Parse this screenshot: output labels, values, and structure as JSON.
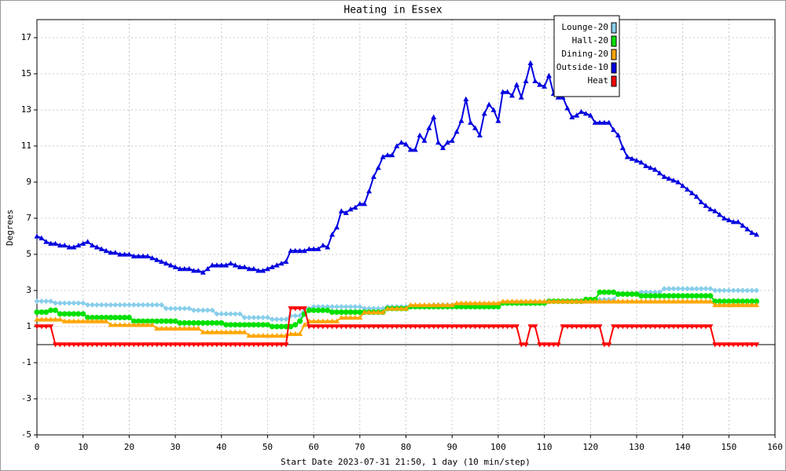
{
  "chart_data": {
    "type": "line",
    "title": "Heating in Essex",
    "ylabel": "Degrees",
    "xlabel": "Start Date 2023-07-31 21:50, 1 day (10 min/step)",
    "xlim": [
      0,
      160
    ],
    "ylim": [
      -5,
      18
    ],
    "grid": true,
    "legend": "upper right",
    "xticks": [
      0,
      10,
      20,
      30,
      40,
      50,
      60,
      70,
      80,
      90,
      100,
      110,
      120,
      130,
      140,
      150,
      160
    ],
    "yticks": [
      -5,
      -3,
      -1,
      1,
      3,
      5,
      7,
      9,
      11,
      13,
      15,
      17
    ],
    "x": [
      0,
      1,
      2,
      3,
      4,
      5,
      6,
      7,
      8,
      9,
      10,
      11,
      12,
      13,
      14,
      15,
      16,
      17,
      18,
      19,
      20,
      21,
      22,
      23,
      24,
      25,
      26,
      27,
      28,
      29,
      30,
      31,
      32,
      33,
      34,
      35,
      36,
      37,
      38,
      39,
      40,
      41,
      42,
      43,
      44,
      45,
      46,
      47,
      48,
      49,
      50,
      51,
      52,
      53,
      54,
      55,
      56,
      57,
      58,
      59,
      60,
      61,
      62,
      63,
      64,
      65,
      66,
      67,
      68,
      69,
      70,
      71,
      72,
      73,
      74,
      75,
      76,
      77,
      78,
      79,
      80,
      81,
      82,
      83,
      84,
      85,
      86,
      87,
      88,
      89,
      90,
      91,
      92,
      93,
      94,
      95,
      96,
      97,
      98,
      99,
      100,
      101,
      102,
      103,
      104,
      105,
      106,
      107,
      108,
      109,
      110,
      111,
      112,
      113,
      114,
      115,
      116,
      117,
      118,
      119,
      120,
      121,
      122,
      123,
      124,
      125,
      126,
      127,
      128,
      129,
      130,
      131,
      132,
      133,
      134,
      135,
      136,
      137,
      138,
      139,
      140,
      141,
      142,
      143,
      144,
      145,
      146,
      147,
      148,
      149,
      150,
      151,
      152,
      153,
      154,
      155,
      156
    ],
    "series": [
      {
        "name": "Lounge-20",
        "color": "#87ceeb",
        "marker": "diamond",
        "values": [
          2.4,
          2.4,
          2.4,
          2.4,
          2.3,
          2.3,
          2.3,
          2.3,
          2.3,
          2.3,
          2.3,
          2.2,
          2.2,
          2.2,
          2.2,
          2.2,
          2.2,
          2.2,
          2.2,
          2.2,
          2.2,
          2.2,
          2.2,
          2.2,
          2.2,
          2.2,
          2.2,
          2.2,
          2.0,
          2.0,
          2.0,
          2.0,
          2.0,
          2.0,
          1.9,
          1.9,
          1.9,
          1.9,
          1.9,
          1.7,
          1.7,
          1.7,
          1.7,
          1.7,
          1.7,
          1.5,
          1.5,
          1.5,
          1.5,
          1.5,
          1.5,
          1.4,
          1.4,
          1.4,
          1.4,
          1.6,
          1.6,
          1.6,
          2.0,
          2.0,
          2.1,
          2.1,
          2.1,
          2.1,
          2.1,
          2.1,
          2.1,
          2.1,
          2.1,
          2.1,
          2.1,
          2.0,
          2.0,
          2.0,
          2.0,
          2.0,
          2.1,
          2.1,
          2.1,
          2.1,
          2.1,
          2.1,
          2.1,
          2.1,
          2.1,
          2.1,
          2.2,
          2.2,
          2.2,
          2.2,
          2.2,
          2.2,
          2.2,
          2.2,
          2.2,
          2.2,
          2.2,
          2.2,
          2.2,
          2.2,
          2.2,
          2.3,
          2.3,
          2.3,
          2.3,
          2.3,
          2.3,
          2.3,
          2.3,
          2.3,
          2.3,
          2.4,
          2.4,
          2.4,
          2.4,
          2.4,
          2.4,
          2.4,
          2.4,
          2.4,
          2.4,
          2.5,
          2.5,
          2.5,
          2.5,
          2.5,
          2.8,
          2.8,
          2.8,
          2.8,
          2.8,
          2.9,
          2.9,
          2.9,
          2.9,
          2.9,
          3.1,
          3.1,
          3.1,
          3.1,
          3.1,
          3.1,
          3.1,
          3.1,
          3.1,
          3.1,
          3.1,
          3.0,
          3.0,
          3.0,
          3.0,
          3.0,
          3.0,
          3.0,
          3.0,
          3.0,
          3.0
        ]
      },
      {
        "name": "Hall-20",
        "color": "#00e000",
        "marker": "circle",
        "values": [
          1.8,
          1.8,
          1.8,
          1.9,
          1.9,
          1.7,
          1.7,
          1.7,
          1.7,
          1.7,
          1.7,
          1.5,
          1.5,
          1.5,
          1.5,
          1.5,
          1.5,
          1.5,
          1.5,
          1.5,
          1.5,
          1.3,
          1.3,
          1.3,
          1.3,
          1.3,
          1.3,
          1.3,
          1.3,
          1.3,
          1.3,
          1.2,
          1.2,
          1.2,
          1.2,
          1.2,
          1.2,
          1.2,
          1.2,
          1.2,
          1.2,
          1.1,
          1.1,
          1.1,
          1.1,
          1.1,
          1.1,
          1.1,
          1.1,
          1.1,
          1.1,
          1.0,
          1.0,
          1.0,
          1.0,
          1.0,
          1.1,
          1.3,
          1.7,
          1.9,
          1.9,
          1.9,
          1.9,
          1.9,
          1.8,
          1.8,
          1.8,
          1.8,
          1.8,
          1.8,
          1.8,
          1.8,
          1.8,
          1.8,
          1.8,
          1.8,
          2.0,
          2.0,
          2.0,
          2.0,
          2.0,
          2.1,
          2.1,
          2.1,
          2.1,
          2.1,
          2.1,
          2.1,
          2.1,
          2.1,
          2.1,
          2.1,
          2.1,
          2.1,
          2.1,
          2.1,
          2.1,
          2.1,
          2.1,
          2.1,
          2.1,
          2.3,
          2.3,
          2.3,
          2.3,
          2.3,
          2.3,
          2.3,
          2.3,
          2.3,
          2.3,
          2.4,
          2.4,
          2.4,
          2.4,
          2.4,
          2.4,
          2.4,
          2.4,
          2.5,
          2.5,
          2.5,
          2.9,
          2.9,
          2.9,
          2.9,
          2.8,
          2.8,
          2.8,
          2.8,
          2.8,
          2.7,
          2.7,
          2.7,
          2.7,
          2.7,
          2.7,
          2.7,
          2.7,
          2.7,
          2.7,
          2.7,
          2.7,
          2.7,
          2.7,
          2.7,
          2.7,
          2.4,
          2.4,
          2.4,
          2.4,
          2.4,
          2.4,
          2.4,
          2.4,
          2.4,
          2.4
        ]
      },
      {
        "name": "Dining-20",
        "color": "#ffa500",
        "marker": "triangle",
        "values": [
          1.4,
          1.4,
          1.4,
          1.4,
          1.4,
          1.4,
          1.3,
          1.3,
          1.3,
          1.3,
          1.3,
          1.3,
          1.3,
          1.3,
          1.3,
          1.3,
          1.1,
          1.1,
          1.1,
          1.1,
          1.1,
          1.1,
          1.1,
          1.1,
          1.1,
          1.1,
          0.9,
          0.9,
          0.9,
          0.9,
          0.9,
          0.9,
          0.9,
          0.9,
          0.9,
          0.9,
          0.7,
          0.7,
          0.7,
          0.7,
          0.7,
          0.7,
          0.7,
          0.7,
          0.7,
          0.7,
          0.5,
          0.5,
          0.5,
          0.5,
          0.5,
          0.5,
          0.5,
          0.5,
          0.5,
          0.6,
          0.6,
          0.6,
          1.1,
          1.3,
          1.3,
          1.3,
          1.3,
          1.3,
          1.3,
          1.3,
          1.5,
          1.5,
          1.5,
          1.5,
          1.5,
          1.8,
          1.8,
          1.8,
          1.8,
          1.8,
          2.0,
          2.0,
          2.0,
          2.0,
          2.0,
          2.2,
          2.2,
          2.2,
          2.2,
          2.2,
          2.2,
          2.2,
          2.2,
          2.2,
          2.2,
          2.3,
          2.3,
          2.3,
          2.3,
          2.3,
          2.3,
          2.3,
          2.3,
          2.3,
          2.3,
          2.4,
          2.4,
          2.4,
          2.4,
          2.4,
          2.4,
          2.4,
          2.4,
          2.4,
          2.4,
          2.4,
          2.4,
          2.4,
          2.4,
          2.4,
          2.4,
          2.4,
          2.4,
          2.4,
          2.4,
          2.4,
          2.4,
          2.4,
          2.4,
          2.4,
          2.4,
          2.4,
          2.4,
          2.4,
          2.4,
          2.4,
          2.4,
          2.4,
          2.4,
          2.4,
          2.4,
          2.4,
          2.4,
          2.4,
          2.4,
          2.4,
          2.4,
          2.4,
          2.4,
          2.4,
          2.4,
          2.2,
          2.2,
          2.2,
          2.2,
          2.2,
          2.2,
          2.2,
          2.2,
          2.2,
          2.2
        ]
      },
      {
        "name": "Outside-10",
        "color": "#0000e0",
        "marker": "triangle",
        "values": [
          6.0,
          5.9,
          5.7,
          5.6,
          5.6,
          5.5,
          5.5,
          5.4,
          5.4,
          5.5,
          5.6,
          5.7,
          5.5,
          5.4,
          5.3,
          5.2,
          5.1,
          5.1,
          5.0,
          5.0,
          5.0,
          4.9,
          4.9,
          4.9,
          4.9,
          4.8,
          4.7,
          4.6,
          4.5,
          4.4,
          4.3,
          4.2,
          4.2,
          4.2,
          4.1,
          4.1,
          4.0,
          4.2,
          4.4,
          4.4,
          4.4,
          4.4,
          4.5,
          4.4,
          4.3,
          4.3,
          4.2,
          4.2,
          4.1,
          4.1,
          4.2,
          4.3,
          4.4,
          4.5,
          4.6,
          5.2,
          5.2,
          5.2,
          5.2,
          5.3,
          5.3,
          5.3,
          5.5,
          5.4,
          6.1,
          6.5,
          7.4,
          7.3,
          7.5,
          7.6,
          7.8,
          7.8,
          8.5,
          9.3,
          9.8,
          10.4,
          10.5,
          10.5,
          11.0,
          11.2,
          11.1,
          10.8,
          10.8,
          11.6,
          11.3,
          12.0,
          12.6,
          11.2,
          10.9,
          11.2,
          11.3,
          11.8,
          12.4,
          13.6,
          12.3,
          12.0,
          11.6,
          12.8,
          13.3,
          13.0,
          12.4,
          14.0,
          14.0,
          13.8,
          14.4,
          13.7,
          14.6,
          15.6,
          14.6,
          14.4,
          14.3,
          14.9,
          13.9,
          13.7,
          13.7,
          13.1,
          12.6,
          12.7,
          12.9,
          12.8,
          12.7,
          12.3,
          12.3,
          12.3,
          12.3,
          11.9,
          11.6,
          10.9,
          10.4,
          10.3,
          10.2,
          10.1,
          9.9,
          9.8,
          9.7,
          9.5,
          9.3,
          9.2,
          9.1,
          9.0,
          8.8,
          8.6,
          8.4,
          8.2,
          7.9,
          7.7,
          7.5,
          7.4,
          7.2,
          7.0,
          6.9,
          6.8,
          6.8,
          6.6,
          6.4,
          6.2,
          6.1
        ]
      },
      {
        "name": "Heat",
        "color": "#ff0000",
        "marker": "triangle-down",
        "values": [
          1,
          1,
          1,
          1,
          0,
          0,
          0,
          0,
          0,
          0,
          0,
          0,
          0,
          0,
          0,
          0,
          0,
          0,
          0,
          0,
          0,
          0,
          0,
          0,
          0,
          0,
          0,
          0,
          0,
          0,
          0,
          0,
          0,
          0,
          0,
          0,
          0,
          0,
          0,
          0,
          0,
          0,
          0,
          0,
          0,
          0,
          0,
          0,
          0,
          0,
          0,
          0,
          0,
          0,
          0,
          2,
          2,
          2,
          2,
          1,
          1,
          1,
          1,
          1,
          1,
          1,
          1,
          1,
          1,
          1,
          1,
          1,
          1,
          1,
          1,
          1,
          1,
          1,
          1,
          1,
          1,
          1,
          1,
          1,
          1,
          1,
          1,
          1,
          1,
          1,
          1,
          1,
          1,
          1,
          1,
          1,
          1,
          1,
          1,
          1,
          1,
          1,
          1,
          1,
          1,
          0,
          0,
          1,
          1,
          0,
          0,
          0,
          0,
          0,
          1,
          1,
          1,
          1,
          1,
          1,
          1,
          1,
          1,
          0,
          0,
          1,
          1,
          1,
          1,
          1,
          1,
          1,
          1,
          1,
          1,
          1,
          1,
          1,
          1,
          1,
          1,
          1,
          1,
          1,
          1,
          1,
          1,
          0,
          0,
          0,
          0,
          0,
          0,
          0,
          0,
          0,
          0
        ]
      }
    ]
  }
}
